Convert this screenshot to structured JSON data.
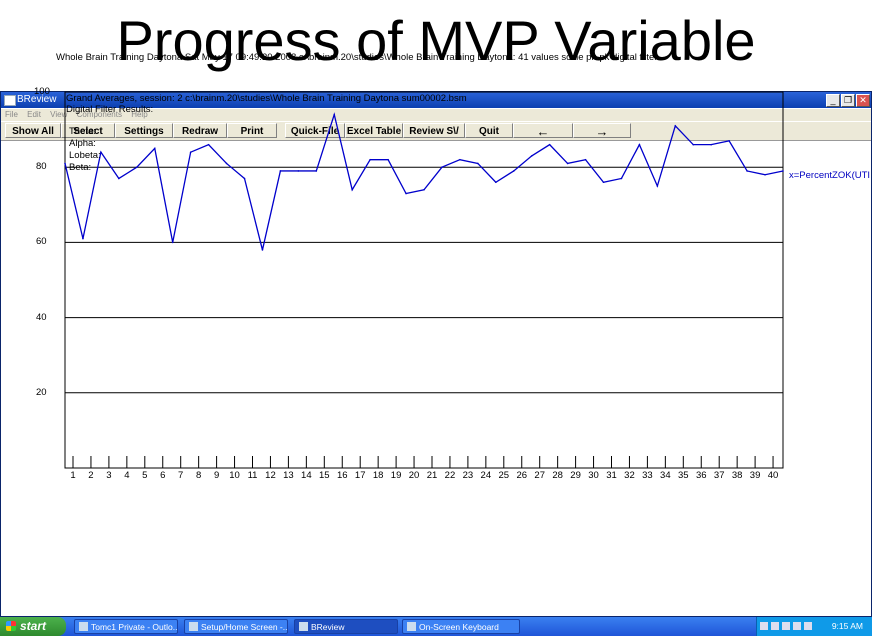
{
  "slide": {
    "title": "Progress of MVP Variable"
  },
  "window": {
    "title": "BReview",
    "controls": {
      "minimize": "_",
      "restore": "❐",
      "close": "✕"
    }
  },
  "menu": [
    "File",
    "Edit",
    "View",
    "Components",
    "Help"
  ],
  "toolbar": [
    "Show All",
    "Select",
    "Settings",
    "Redraw",
    "Print",
    "Quick-File",
    "Excel Table",
    "Review S\\/",
    "Quit",
    "←",
    "→"
  ],
  "header_text": "Whole Brain Training Daytona   Sat May 17 09:49:20 2008   c:\\brainm.20\\studies\\Whole Brain Training Daytona: 41 values scale pk-pk digital filter",
  "plot_text": {
    "line1": "Grand Averages, session: 2 c:\\brainm.20\\studies\\Whole Brain Training Daytona sum00002.bsm",
    "line2": "Digital Filter Results:",
    "bands": [
      "Theta:",
      "Alpha:",
      "Lobeta:",
      "Beta:"
    ]
  },
  "chart_data": {
    "type": "line",
    "x": [
      0,
      1,
      2,
      3,
      4,
      5,
      6,
      7,
      8,
      9,
      10,
      11,
      12,
      13,
      14,
      15,
      16,
      17,
      18,
      19,
      20,
      21,
      22,
      23,
      24,
      25,
      26,
      27,
      28,
      29,
      30,
      31,
      32,
      33,
      34,
      35,
      36,
      37,
      38,
      39,
      40
    ],
    "series": [
      {
        "name": "x=PercentZOK(UTI",
        "color": "#0000cc",
        "values": [
          81,
          61,
          84,
          77,
          80,
          85,
          60,
          84,
          86,
          81,
          77,
          58,
          79,
          79,
          79,
          94,
          74,
          82,
          82,
          73,
          74,
          80,
          82,
          81,
          76,
          79,
          83,
          86,
          81,
          82,
          76,
          77,
          86,
          75,
          91,
          86,
          86,
          87,
          79,
          78,
          79
        ]
      }
    ],
    "ylim": [
      0,
      100
    ],
    "xlim": [
      0,
      40
    ],
    "yticks": [
      20,
      40,
      60,
      80,
      100
    ],
    "xtick_labels": [
      "1",
      "2",
      "3",
      "4",
      "5",
      "6",
      "7",
      "8",
      "9",
      "10",
      "11",
      "12",
      "13",
      "14",
      "15",
      "16",
      "17",
      "18",
      "19",
      "20",
      "21",
      "22",
      "23",
      "24",
      "25",
      "26",
      "27",
      "28",
      "29",
      "30",
      "31",
      "32",
      "33",
      "34",
      "35",
      "36",
      "37",
      "38",
      "39",
      "40"
    ],
    "gridlines": [
      20,
      40,
      60,
      80
    ]
  },
  "taskbar": {
    "start": "start",
    "tasks": [
      "Tomc1 Private - Outlo...",
      "Setup/Home Screen -...",
      "BReview",
      "On-Screen Keyboard"
    ],
    "clock": "9:15 AM"
  }
}
